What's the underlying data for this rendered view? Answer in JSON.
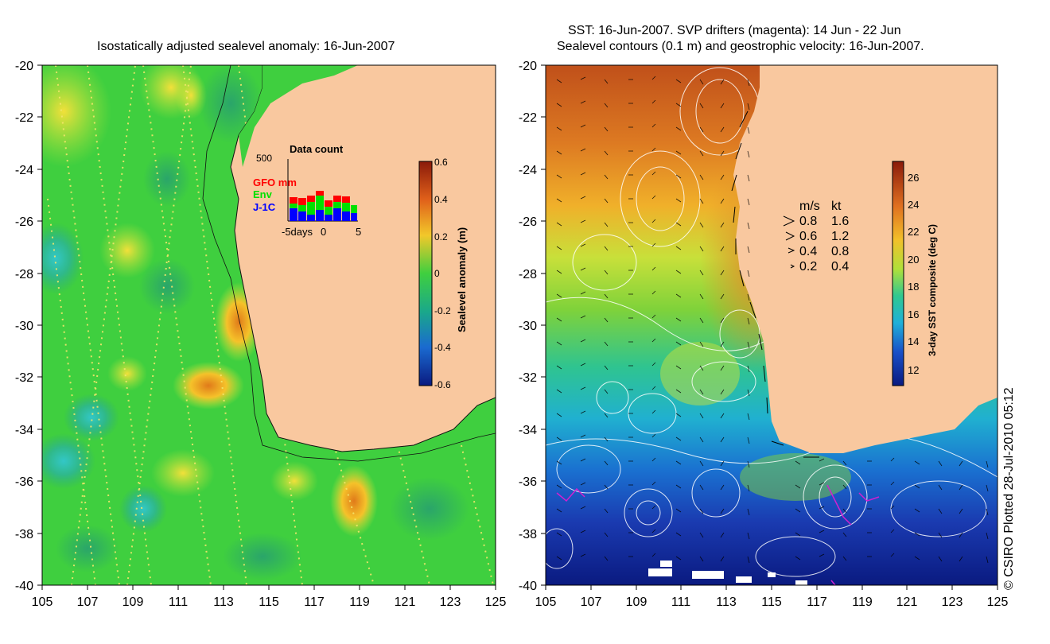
{
  "left_panel": {
    "title": "Isostatically adjusted sealevel anomaly: 16-Jun-2007",
    "x_ticks": [
      "105",
      "107",
      "109",
      "111",
      "113",
      "115",
      "117",
      "119",
      "121",
      "123",
      "125"
    ],
    "y_ticks": [
      "-20",
      "-22",
      "-24",
      "-26",
      "-28",
      "-30",
      "-32",
      "-34",
      "-36",
      "-38",
      "-40"
    ],
    "data_count": {
      "title": "Data count",
      "ymax": "500",
      "legend": [
        {
          "label": "GFO mm",
          "color": "#ff0000"
        },
        {
          "label": "Env",
          "color": "#00e000"
        },
        {
          "label": "J-1C",
          "color": "#0000ff"
        }
      ],
      "x_labels": [
        "-5days",
        "0",
        "5"
      ]
    },
    "colorbar": {
      "label": "Sealevel anomaly (m)",
      "ticks": [
        "0.6",
        "0.4",
        "0.2",
        "0",
        "-0.2",
        "-0.4",
        "-0.6"
      ]
    }
  },
  "right_panel": {
    "title_line1": "SST: 16-Jun-2007. SVP drifters (magenta): 14 Jun - 22 Jun",
    "title_line2": "Sealevel contours (0.1 m) and geostrophic velocity: 16-Jun-2007.",
    "x_ticks": [
      "105",
      "107",
      "109",
      "111",
      "113",
      "115",
      "117",
      "119",
      "121",
      "123",
      "125"
    ],
    "y_ticks": [
      "-20",
      "-22",
      "-24",
      "-26",
      "-28",
      "-30",
      "-32",
      "-34",
      "-36",
      "-38",
      "-40"
    ],
    "velocity_legend": {
      "header_ms": "m/s",
      "header_kt": "kt",
      "rows": [
        {
          "ms": "0.8",
          "kt": "1.6"
        },
        {
          "ms": "0.6",
          "kt": "1.2"
        },
        {
          "ms": "0.4",
          "kt": "0.8"
        },
        {
          "ms": "0.2",
          "kt": "0.4"
        }
      ]
    },
    "colorbar": {
      "label": "3-day SST composite (deg C)",
      "ticks": [
        "26",
        "24",
        "22",
        "20",
        "18",
        "16",
        "14",
        "12"
      ]
    }
  },
  "credit": "© CSIRO Plotted 28-Jul-2010 05:12",
  "colors": {
    "land": "#f9c89f",
    "ocean_anomaly": "#3fcf3f",
    "sst_warm": "#c0501a",
    "sst_cold": "#0a2a9a"
  }
}
